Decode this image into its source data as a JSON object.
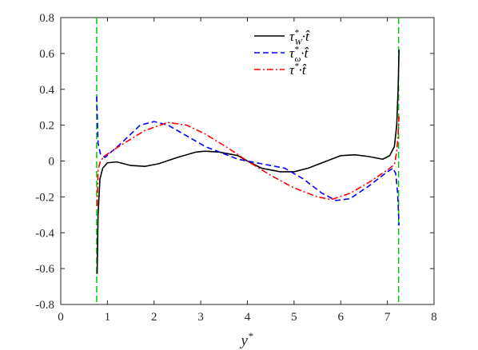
{
  "chart_data": {
    "type": "line",
    "title": "",
    "xlabel": "y*",
    "ylabel": "",
    "xlim": [
      0,
      8
    ],
    "ylim": [
      -0.8,
      0.8
    ],
    "xticks": [
      0,
      1,
      2,
      3,
      4,
      5,
      6,
      7,
      8
    ],
    "yticks": [
      -0.8,
      -0.6,
      -0.4,
      -0.2,
      0,
      0.2,
      0.4,
      0.6,
      0.8
    ],
    "xtick_labels": [
      "0",
      "1",
      "2",
      "3",
      "4",
      "5",
      "6",
      "7",
      "8"
    ],
    "ytick_labels": [
      "-0.8",
      "-0.6",
      "-0.4",
      "-0.2",
      "0",
      "0.2",
      "0.4",
      "0.6",
      "0.8"
    ],
    "grid": false,
    "legend_position": "top-right",
    "vertical_lines": {
      "x": [
        0.77,
        7.24
      ],
      "color": "#00cc00",
      "style": "dashed"
    },
    "series": [
      {
        "name": "τ*W·t̂",
        "color": "#000000",
        "style": "solid",
        "points": [
          [
            0.78,
            -0.63
          ],
          [
            0.8,
            -0.3
          ],
          [
            0.84,
            -0.1
          ],
          [
            0.9,
            -0.04
          ],
          [
            1.0,
            -0.01
          ],
          [
            1.2,
            -0.005
          ],
          [
            1.5,
            -0.025
          ],
          [
            1.8,
            -0.03
          ],
          [
            2.1,
            -0.015
          ],
          [
            2.5,
            0.02
          ],
          [
            2.9,
            0.05
          ],
          [
            3.1,
            0.055
          ],
          [
            3.4,
            0.05
          ],
          [
            3.8,
            0.03
          ],
          [
            4.0,
            0.0
          ],
          [
            4.3,
            -0.04
          ],
          [
            4.7,
            -0.06
          ],
          [
            5.0,
            -0.06
          ],
          [
            5.3,
            -0.04
          ],
          [
            5.7,
            0.0
          ],
          [
            6.0,
            0.03
          ],
          [
            6.3,
            0.035
          ],
          [
            6.6,
            0.025
          ],
          [
            6.9,
            0.01
          ],
          [
            7.05,
            0.03
          ],
          [
            7.15,
            0.08
          ],
          [
            7.2,
            0.2
          ],
          [
            7.23,
            0.4
          ],
          [
            7.25,
            0.62
          ]
        ]
      },
      {
        "name": "τ*ω·t̂",
        "color": "#0000ff",
        "style": "dashed",
        "points": [
          [
            0.77,
            0.36
          ],
          [
            0.8,
            0.1
          ],
          [
            0.85,
            0.04
          ],
          [
            0.95,
            0.02
          ],
          [
            1.3,
            0.1
          ],
          [
            1.7,
            0.2
          ],
          [
            2.0,
            0.22
          ],
          [
            2.3,
            0.2
          ],
          [
            2.7,
            0.14
          ],
          [
            3.1,
            0.08
          ],
          [
            3.5,
            0.04
          ],
          [
            3.8,
            0.01
          ],
          [
            4.0,
            0.0
          ],
          [
            4.4,
            -0.02
          ],
          [
            4.8,
            -0.04
          ],
          [
            5.2,
            -0.1
          ],
          [
            5.6,
            -0.18
          ],
          [
            5.9,
            -0.22
          ],
          [
            6.2,
            -0.21
          ],
          [
            6.6,
            -0.14
          ],
          [
            7.0,
            -0.06
          ],
          [
            7.12,
            -0.04
          ],
          [
            7.18,
            -0.07
          ],
          [
            7.22,
            -0.18
          ],
          [
            7.25,
            -0.36
          ]
        ]
      },
      {
        "name": "τ*·t̂",
        "color": "#ff0000",
        "style": "dashdot",
        "points": [
          [
            0.78,
            -0.25
          ],
          [
            0.8,
            -0.05
          ],
          [
            0.85,
            0.0
          ],
          [
            0.95,
            0.03
          ],
          [
            1.3,
            0.09
          ],
          [
            1.8,
            0.17
          ],
          [
            2.3,
            0.215
          ],
          [
            2.7,
            0.2
          ],
          [
            3.1,
            0.15
          ],
          [
            3.6,
            0.07
          ],
          [
            4.0,
            0.0
          ],
          [
            4.5,
            -0.08
          ],
          [
            5.0,
            -0.15
          ],
          [
            5.5,
            -0.2
          ],
          [
            5.8,
            -0.215
          ],
          [
            6.2,
            -0.18
          ],
          [
            6.6,
            -0.12
          ],
          [
            7.0,
            -0.05
          ],
          [
            7.15,
            -0.02
          ],
          [
            7.2,
            0.05
          ],
          [
            7.23,
            0.15
          ],
          [
            7.25,
            0.25
          ]
        ]
      }
    ],
    "legend": {
      "entries": [
        {
          "base": "τ",
          "sup": "*",
          "sub": "W",
          "suffix": "·t̂"
        },
        {
          "base": "τ",
          "sup": "*",
          "sub": "ω",
          "suffix": "·t̂"
        },
        {
          "base": "τ",
          "sup": "*",
          "sub": "",
          "suffix": "·t̂"
        }
      ]
    }
  }
}
